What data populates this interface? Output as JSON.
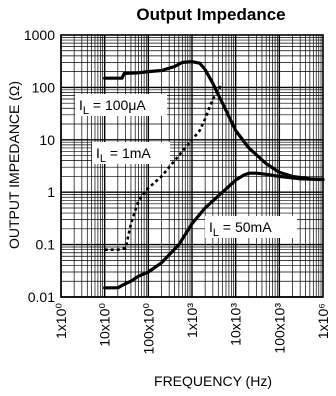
{
  "chart_data": {
    "type": "line",
    "title": "Output Impedance",
    "xlabel": "FREQUENCY (Hz)",
    "ylabel": "OUTPUT IMPEDANCE (Ω)",
    "x_scale": "log",
    "y_scale": "log",
    "xlim": [
      1,
      1000000
    ],
    "ylim": [
      0.01,
      1000
    ],
    "grid": true,
    "x_ticks": [
      1,
      10,
      100,
      1000,
      10000,
      100000,
      1000000
    ],
    "x_tick_labels": [
      "1x10⁰",
      "10x10⁰",
      "100x10⁰",
      "1x10³",
      "10x10³",
      "100x10³",
      "1x10⁶"
    ],
    "y_ticks": [
      0.01,
      0.1,
      1,
      10,
      100,
      1000
    ],
    "y_tick_labels": [
      "0.01",
      "0.1",
      "1",
      "10",
      "100",
      "1000"
    ],
    "annotations": [
      {
        "sub_prefix": "I",
        "sub": "L",
        "rest": " = 100μA"
      },
      {
        "sub_prefix": "I",
        "sub": "L",
        "rest": " = 1mA"
      },
      {
        "sub_prefix": "I",
        "sub": "L",
        "rest": " = 50mA"
      }
    ],
    "series": [
      {
        "style": "solid",
        "x": [
          10,
          25,
          28,
          60,
          100,
          200,
          400,
          600,
          1000,
          1500,
          2000,
          3000,
          5000,
          10000,
          20000,
          50000,
          100000,
          200000,
          500000,
          1000000
        ],
        "y": [
          150,
          150,
          185,
          190,
          200,
          210,
          250,
          300,
          310,
          290,
          220,
          120,
          50,
          15,
          7,
          3.5,
          2.4,
          2.0,
          1.8,
          1.75
        ]
      },
      {
        "style": "dashed",
        "x": [
          10,
          20,
          30,
          40,
          60,
          100,
          200,
          400,
          600,
          1000,
          1500,
          2000,
          3000,
          5000
        ],
        "y": [
          0.08,
          0.08,
          0.085,
          0.25,
          0.7,
          1.2,
          2,
          4,
          6,
          10,
          15,
          25,
          60,
          120
        ]
      },
      {
        "style": "solid",
        "x": [
          10,
          20,
          30,
          40,
          60,
          100,
          200,
          500,
          1000,
          2000,
          5000,
          10000,
          15000,
          20000,
          30000,
          50000,
          100000,
          300000,
          1000000
        ],
        "y": [
          0.015,
          0.015,
          0.018,
          0.02,
          0.025,
          0.03,
          0.045,
          0.1,
          0.25,
          0.5,
          1.0,
          1.7,
          2.1,
          2.3,
          2.3,
          2.2,
          2.0,
          1.8,
          1.75
        ]
      }
    ]
  }
}
